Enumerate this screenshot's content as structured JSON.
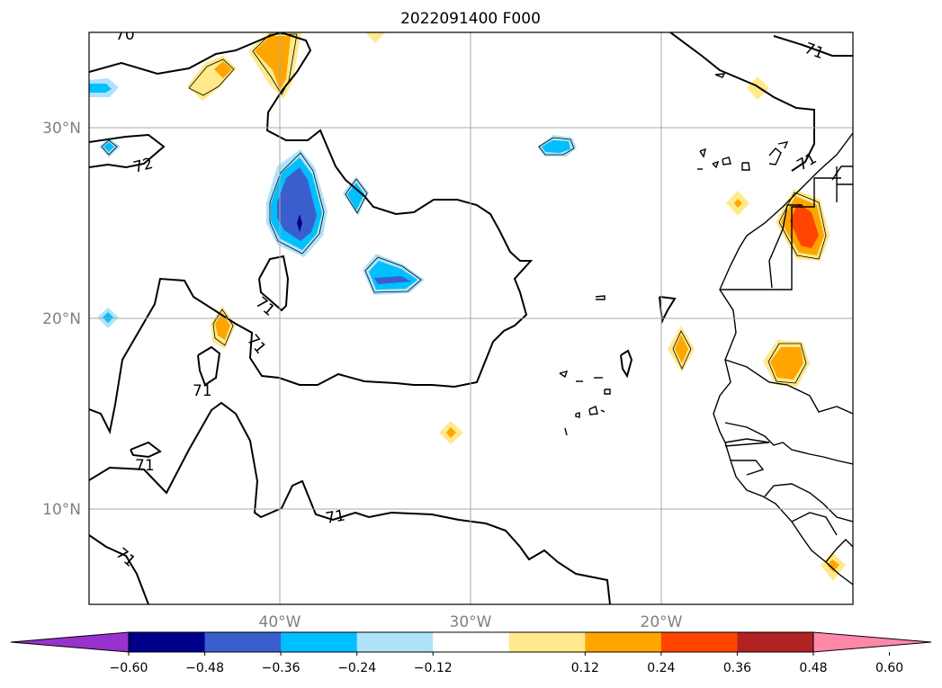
{
  "title": "2022091400 F000",
  "lat_labels": [
    "30°N",
    "20°N",
    "10°N"
  ],
  "lon_labels": [
    "40°W",
    "30°W",
    "20°W"
  ],
  "contour_labels": [
    "70",
    "71",
    "72",
    "71",
    "71",
    "71",
    "71",
    "71",
    "71",
    "71"
  ],
  "colorbar": {
    "tick_labels": [
      "−0.60",
      "−0.48",
      "−0.36",
      "−0.24",
      "−0.12",
      "0.12",
      "0.24",
      "0.36",
      "0.48",
      "0.60"
    ],
    "colors": [
      "#9932cc",
      "#00008b",
      "#3a5fcd",
      "#00bfff",
      "#aee3fa",
      "#ffffff",
      "#ffe98a",
      "#ffa500",
      "#ff4500",
      "#b22222",
      "#ff88aa"
    ]
  },
  "fill_colors": {
    "light_blue": "#aee3fa",
    "sky_blue": "#00bfff",
    "royal_blue": "#3a5fcd",
    "navy": "#00008b",
    "light_yellow": "#ffe98a",
    "orange": "#ffa500",
    "red_orange": "#ff4500"
  }
}
